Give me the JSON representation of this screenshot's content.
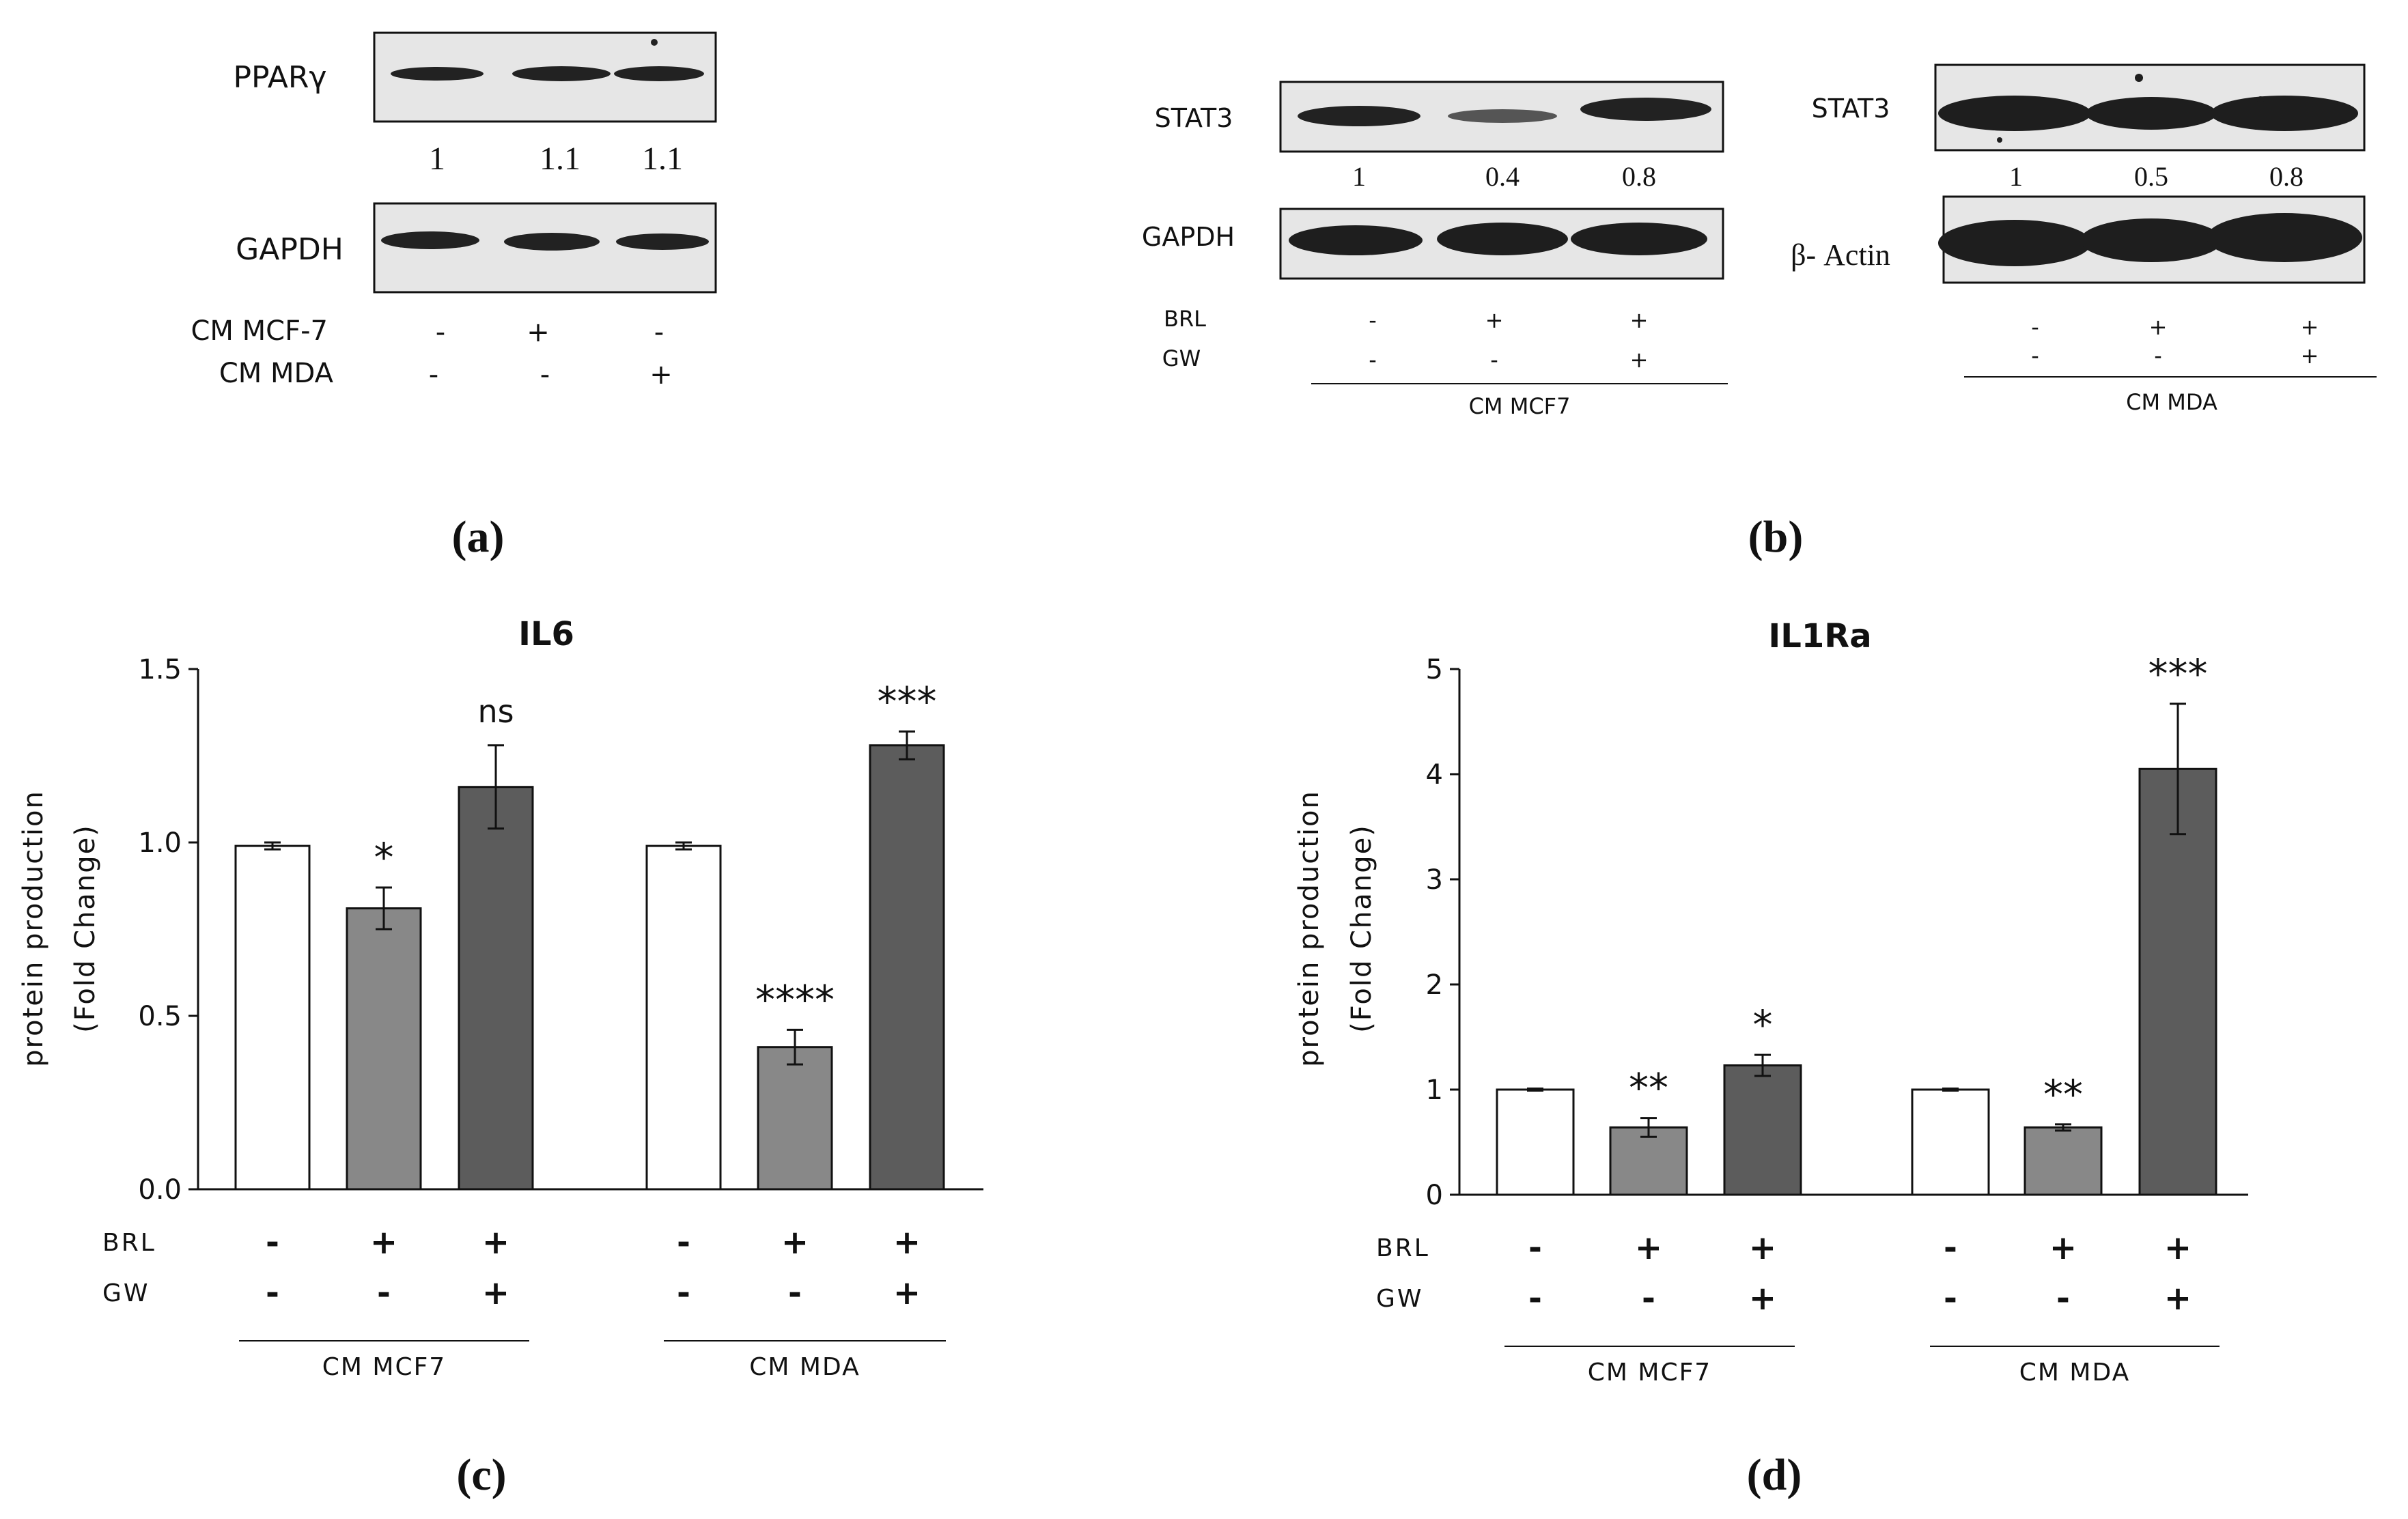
{
  "colors": {
    "white_bar": "#ffffff",
    "mid_gray_bar": "#888888",
    "dark_gray_bar": "#5c5c5c",
    "axis": "#111111",
    "blot_bg": "#e6e6e6",
    "blot_band": "#1e1e1e"
  },
  "panel_a": {
    "label": "(a)",
    "blots": [
      {
        "name": "PPARγ",
        "quant": [
          "1",
          "1.1",
          "1.1"
        ]
      },
      {
        "name": "GAPDH",
        "quant": []
      }
    ],
    "treatments": [
      {
        "label": "CM MCF-7",
        "values": [
          "-",
          "+",
          "-"
        ]
      },
      {
        "label": "CM MDA",
        "values": [
          "-",
          "-",
          "+"
        ]
      }
    ]
  },
  "panel_b": {
    "label": "(b)",
    "left": {
      "blots": [
        {
          "name": "STAT3",
          "quant": [
            "1",
            "0.4",
            "0.8"
          ]
        },
        {
          "name": "GAPDH",
          "quant": []
        }
      ],
      "treatments": [
        {
          "label": "BRL",
          "values": [
            "-",
            "+",
            "+"
          ]
        },
        {
          "label": "GW",
          "values": [
            "-",
            "-",
            "+"
          ]
        }
      ],
      "group": "CM MCF7"
    },
    "right": {
      "blots": [
        {
          "name": "STAT3",
          "quant": [
            "1",
            "0.5",
            "0.8"
          ]
        },
        {
          "name": "β- Actin",
          "quant": []
        }
      ],
      "treatments": [
        {
          "label": "",
          "values": [
            "-",
            "+",
            "+"
          ]
        },
        {
          "label": "",
          "values": [
            "-",
            "-",
            "+"
          ]
        }
      ],
      "group": "CM MDA"
    }
  },
  "chart_data": [
    {
      "panel": "(c)",
      "type": "bar",
      "title": "IL6",
      "ylabel_line1": "protein production",
      "ylabel_line2": "(Fold Change)",
      "ylim": [
        0,
        1.5
      ],
      "yticks": [
        "0.0",
        "0.5",
        "1.0",
        "1.5"
      ],
      "categories": [
        "CM MCF7: -/-",
        "CM MCF7: BRL",
        "CM MCF7: BRL+GW",
        "CM MDA: -/-",
        "CM MDA: BRL",
        "CM MDA: BRL+GW"
      ],
      "values": [
        0.99,
        0.81,
        1.16,
        0.99,
        0.41,
        1.28
      ],
      "errors": [
        0.01,
        0.06,
        0.12,
        0.01,
        0.05,
        0.04
      ],
      "significance": [
        "",
        "*",
        "ns",
        "",
        "****",
        "***"
      ],
      "treatments": [
        {
          "label": "BRL",
          "values": [
            "-",
            "+",
            "+",
            "-",
            "+",
            "+"
          ]
        },
        {
          "label": "GW",
          "values": [
            "-",
            "-",
            "+",
            "-",
            "-",
            "+"
          ]
        }
      ],
      "groups": [
        "CM MCF7",
        "CM MDA"
      ]
    },
    {
      "panel": "(d)",
      "type": "bar",
      "title": "IL1Ra",
      "ylabel_line1": "protein production",
      "ylabel_line2": "(Fold Change)",
      "ylim": [
        0,
        5
      ],
      "yticks": [
        "0",
        "1",
        "2",
        "3",
        "4",
        "5"
      ],
      "categories": [
        "CM MCF7: -/-",
        "CM MCF7: BRL",
        "CM MCF7: BRL+GW",
        "CM MDA: -/-",
        "CM MDA: BRL",
        "CM MDA: BRL+GW"
      ],
      "values": [
        1.0,
        0.64,
        1.23,
        1.0,
        0.64,
        4.05
      ],
      "errors": [
        0.01,
        0.09,
        0.1,
        0.01,
        0.03,
        0.62
      ],
      "significance": [
        "",
        "**",
        "*",
        "",
        "**",
        "***"
      ],
      "treatments": [
        {
          "label": "BRL",
          "values": [
            "-",
            "+",
            "+",
            "-",
            "+",
            "+"
          ]
        },
        {
          "label": "GW",
          "values": [
            "-",
            "-",
            "+",
            "-",
            "-",
            "+"
          ]
        }
      ],
      "groups": [
        "CM MCF7",
        "CM MDA"
      ]
    }
  ]
}
